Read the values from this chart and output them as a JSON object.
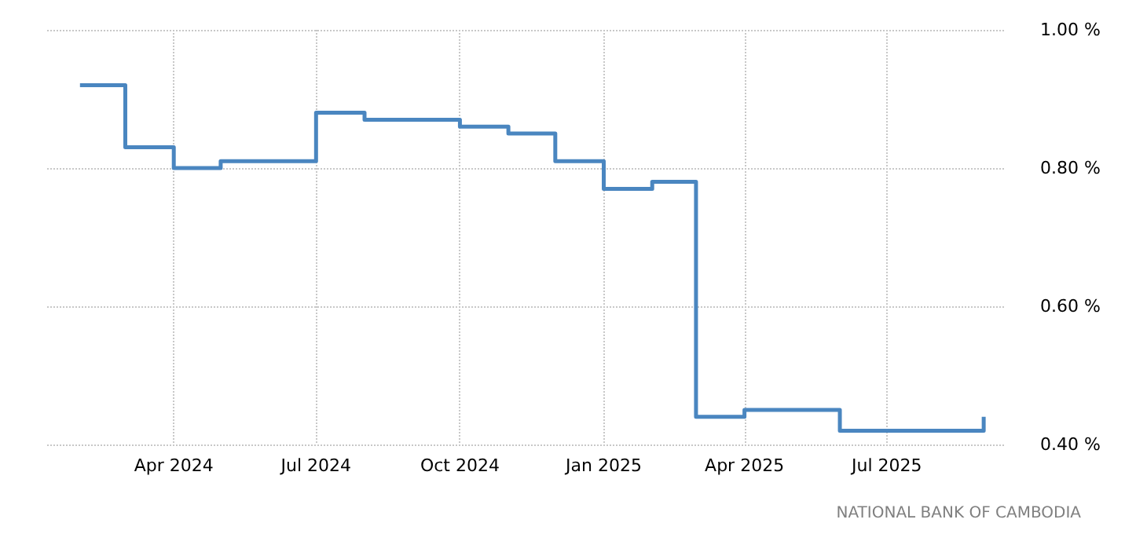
{
  "chart_data": {
    "type": "step",
    "x": [
      "2024-02",
      "2024-03",
      "2024-04",
      "2024-05",
      "2024-06",
      "2024-07",
      "2024-08",
      "2024-09",
      "2024-10",
      "2024-11",
      "2024-12",
      "2025-01",
      "2025-02",
      "2025-03",
      "2025-04",
      "2025-05",
      "2025-06",
      "2025-07",
      "2025-08",
      "2025-09"
    ],
    "series": [
      {
        "color": "#4a86c0",
        "values": [
          0.92,
          0.83,
          0.8,
          0.81,
          0.81,
          0.88,
          0.87,
          0.87,
          0.86,
          0.85,
          0.81,
          0.77,
          0.78,
          0.44,
          0.45,
          0.45,
          0.42,
          0.42,
          0.42,
          0.44
        ]
      }
    ],
    "xlim": [
      "2024-01-11",
      "2025-09-15"
    ],
    "xticks": [
      {
        "value": "2024-04",
        "label": "Apr 2024"
      },
      {
        "value": "2024-07",
        "label": "Jul 2024"
      },
      {
        "value": "2024-10",
        "label": "Oct 2024"
      },
      {
        "value": "2025-01",
        "label": "Jan 2025"
      },
      {
        "value": "2025-04",
        "label": "Apr 2025"
      },
      {
        "value": "2025-07",
        "label": "Jul 2025"
      }
    ],
    "ylim": [
      0.4,
      1.0
    ],
    "yticks": [
      {
        "value": 0.4,
        "label": "0.40 %"
      },
      {
        "value": 0.6,
        "label": "0.60 %"
      },
      {
        "value": 0.8,
        "label": "0.80 %"
      },
      {
        "value": 1.0,
        "label": "1.00 %"
      }
    ],
    "grid": true,
    "annotations": [
      "NATIONAL BANK OF CAMBODIA"
    ]
  }
}
